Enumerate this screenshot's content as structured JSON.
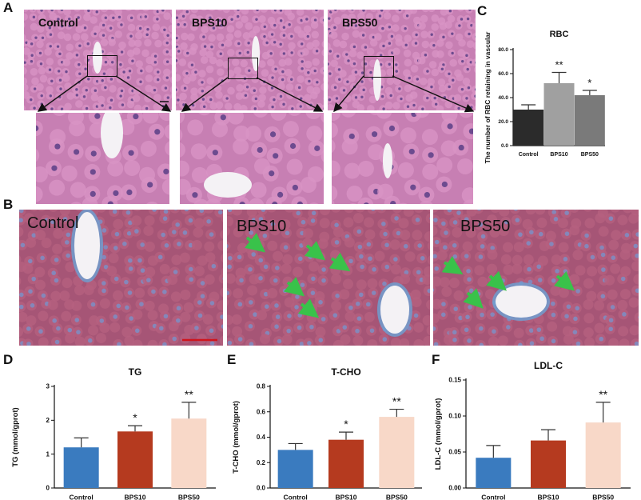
{
  "panels": {
    "A": {
      "letter": "A",
      "labels": [
        "Control",
        "BPS10",
        "BPS50"
      ]
    },
    "B": {
      "letter": "B",
      "labels": [
        "Control",
        "BPS10",
        "BPS50"
      ]
    },
    "C": {
      "letter": "C"
    },
    "D": {
      "letter": "D"
    },
    "E": {
      "letter": "E"
    },
    "F": {
      "letter": "F"
    }
  },
  "colors": {
    "he_base": "#c77fb3",
    "he_cell": "#d894c4",
    "he_nucleus": "#5a3f86",
    "mt_base": "#a65576",
    "mt_cell": "#b5607f",
    "mt_nucleus": "#7c8ec4",
    "arrow": "#39c24a",
    "scale_bar": "#d0151d",
    "control_bar": "#3a7bbf",
    "bps10_bar": "#b53a1f",
    "bps50_bar": "#f8d8c8",
    "rbc_control": "#2b2b2b",
    "rbc_bps10": "#a0a0a0",
    "rbc_bps50": "#7a7a7a"
  },
  "chart_data": [
    {
      "id": "C",
      "type": "bar",
      "title": "RBC",
      "categories": [
        "Control",
        "BPS10",
        "BPS50"
      ],
      "values": [
        30,
        52,
        42
      ],
      "errors": [
        4,
        9,
        4
      ],
      "significance": [
        "",
        "**",
        "*"
      ],
      "ylabel": "The number of RBC retaining in vascular",
      "ylim": [
        0,
        80
      ],
      "yticks": [
        0.0,
        20.0,
        40.0,
        60.0,
        80.0
      ],
      "ytick_labels": [
        "0.0",
        "20.0",
        "40.0",
        "60.0",
        "80.0"
      ]
    },
    {
      "id": "D",
      "type": "bar",
      "title": "TG",
      "categories": [
        "Control",
        "BPS10",
        "BPS50"
      ],
      "values": [
        1.2,
        1.67,
        2.05
      ],
      "errors": [
        0.28,
        0.17,
        0.48
      ],
      "significance": [
        "",
        "*",
        "**"
      ],
      "ylabel": "TG (mmol/gprot)",
      "ylim": [
        0,
        3
      ],
      "yticks": [
        0,
        1,
        2,
        3
      ],
      "ytick_labels": [
        "0",
        "1",
        "2",
        "3"
      ]
    },
    {
      "id": "E",
      "type": "bar",
      "title": "T-CHO",
      "categories": [
        "Control",
        "BPS10",
        "BPS50"
      ],
      "values": [
        0.3,
        0.38,
        0.56
      ],
      "errors": [
        0.05,
        0.06,
        0.06
      ],
      "significance": [
        "",
        "*",
        "**"
      ],
      "ylabel": "T-CHO (mmol/gprot)",
      "ylim": [
        0,
        0.8
      ],
      "yticks": [
        0,
        0.2,
        0.4,
        0.6,
        0.8
      ],
      "ytick_labels": [
        "0.0",
        "0.2",
        "0.4",
        "0.6",
        "0.8"
      ]
    },
    {
      "id": "F",
      "type": "bar",
      "title": "LDL-C",
      "categories": [
        "Control",
        "BPS10",
        "BPS50"
      ],
      "values": [
        0.042,
        0.066,
        0.091
      ],
      "errors": [
        0.017,
        0.015,
        0.028
      ],
      "significance": [
        "",
        "",
        "**"
      ],
      "ylabel": "LDL-C (mmol/gprot)",
      "ylim": [
        0,
        0.15
      ],
      "yticks": [
        0,
        0.05,
        0.1,
        0.15
      ],
      "ytick_labels": [
        "0.00",
        "0.05",
        "0.10",
        "0.15"
      ]
    }
  ]
}
